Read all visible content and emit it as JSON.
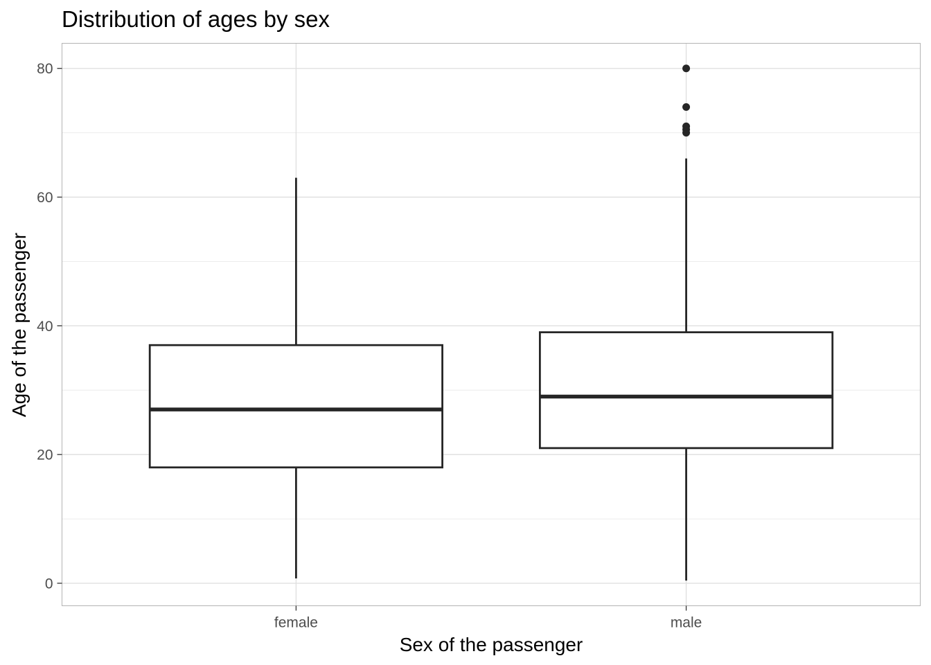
{
  "chart_data": {
    "type": "boxplot",
    "title": "Distribution of ages by sex",
    "xlabel": "Sex of the passenger",
    "ylabel": "Age of the passenger",
    "ylim": [
      -3.5,
      83.9
    ],
    "y_ticks": [
      0,
      20,
      40,
      60,
      80
    ],
    "y_minor_ticks": [
      10,
      30,
      50,
      70
    ],
    "grid": true,
    "theme": "light",
    "categories": [
      "female",
      "male"
    ],
    "boxes": [
      {
        "category": "female",
        "whisker_low": 0.75,
        "q1": 18,
        "median": 27,
        "q3": 37,
        "whisker_high": 63,
        "outliers": []
      },
      {
        "category": "male",
        "whisker_low": 0.42,
        "q1": 21,
        "median": 29,
        "q3": 39,
        "whisker_high": 66,
        "outliers": [
          70,
          70.5,
          71,
          74,
          80
        ]
      }
    ],
    "colors": {
      "box_line": "#262626",
      "outlier": "#262626",
      "grid_major": "#dedede",
      "grid_minor": "#ececec",
      "panel_border": "#b3b3b3",
      "tick_text": "#4d4d4d",
      "text": "#000000"
    }
  }
}
